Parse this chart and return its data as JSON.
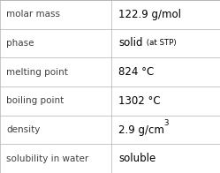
{
  "rows": [
    {
      "label": "molar mass",
      "value": "122.9 g/mol",
      "type": "plain"
    },
    {
      "label": "phase",
      "value": "solid",
      "type": "sub",
      "sub": " (at STP)"
    },
    {
      "label": "melting point",
      "value": "824 °C",
      "type": "plain"
    },
    {
      "label": "boiling point",
      "value": "1302 °C",
      "type": "plain"
    },
    {
      "label": "density",
      "value": "2.9 g/cm",
      "type": "super",
      "super": "3"
    },
    {
      "label": "solubility in water",
      "value": "soluble",
      "type": "plain"
    }
  ],
  "bg_color": "#ffffff",
  "line_color": "#b0b0b0",
  "label_color": "#404040",
  "value_color": "#000000",
  "col_split": 0.508,
  "font_size_label": 7.5,
  "font_size_value": 8.5,
  "font_size_sub": 6.2,
  "font_size_super": 6.2
}
